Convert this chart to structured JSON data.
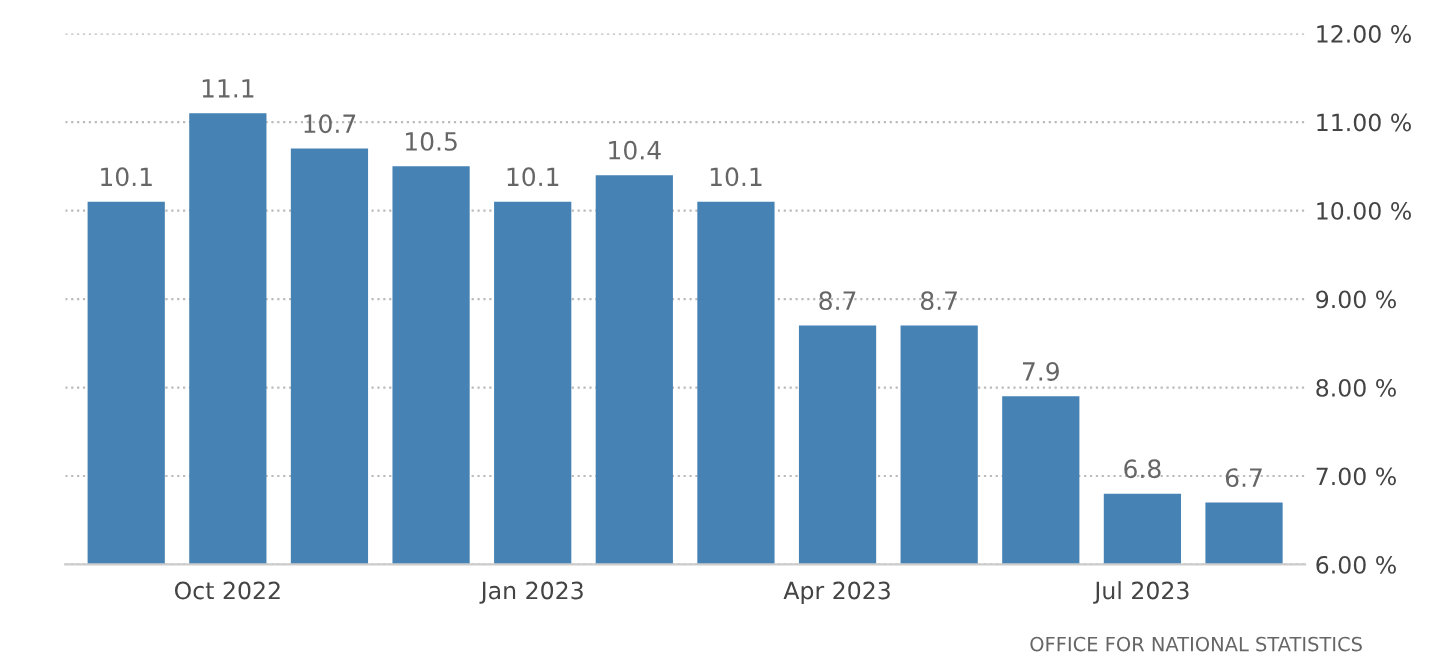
{
  "chart_data": {
    "type": "bar",
    "categories": [
      null,
      "Oct 2022",
      null,
      null,
      "Jan 2023",
      null,
      null,
      "Apr 2023",
      null,
      null,
      "Jul 2023",
      null
    ],
    "values": [
      10.1,
      11.1,
      10.7,
      10.5,
      10.1,
      10.4,
      10.1,
      8.7,
      8.7,
      7.9,
      6.8,
      6.7
    ],
    "color": "#4682b4",
    "data_labels": true,
    "ylim": [
      6,
      12
    ],
    "yticks": [
      {
        "value": 6,
        "label": "6.00 %"
      },
      {
        "value": 7,
        "label": "7.00 %"
      },
      {
        "value": 8,
        "label": "8.00 %"
      },
      {
        "value": 9,
        "label": "9.00 %"
      },
      {
        "value": 10,
        "label": "10.00 %"
      },
      {
        "value": 11,
        "label": "11.00 %"
      },
      {
        "value": 12,
        "label": "12.00 %"
      }
    ],
    "grid": "y",
    "annotations": [
      "OFFICE FOR NATIONAL STATISTICS"
    ]
  }
}
